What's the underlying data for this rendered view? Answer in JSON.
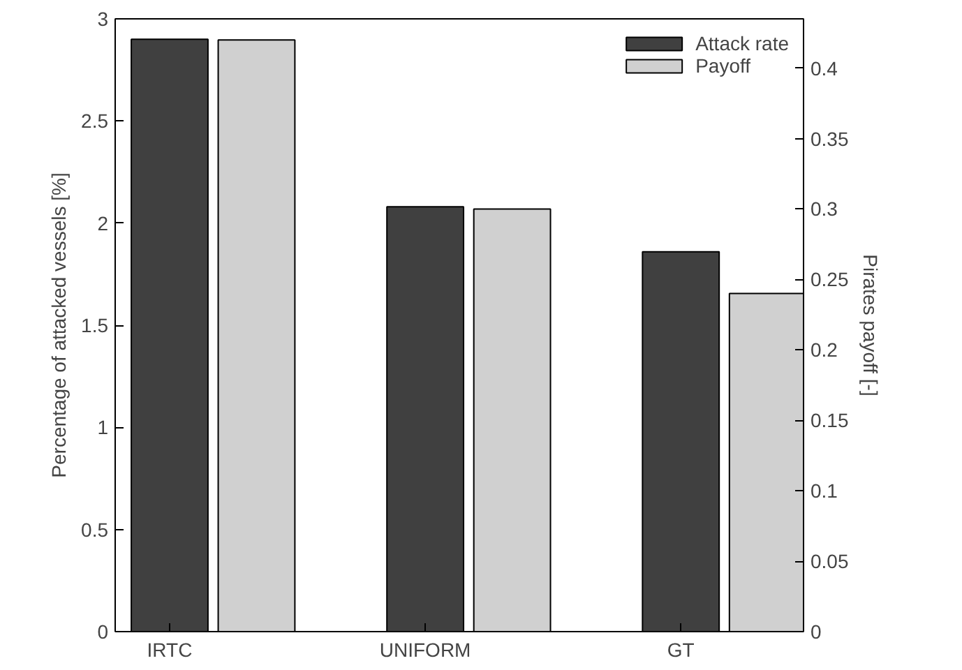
{
  "chart_data": {
    "type": "bar",
    "categories": [
      "IRTC",
      "UNIFORM",
      "GT"
    ],
    "series": [
      {
        "name": "Attack rate",
        "color": "#404040",
        "values": [
          2.9,
          2.08,
          1.86
        ]
      },
      {
        "name": "Payoff",
        "color": "#d0d0d0",
        "values": [
          0.42,
          0.3,
          0.24
        ],
        "axis": "y2"
      }
    ],
    "ylabel": "Percentage of attacked vessels [%]",
    "y2label": "Pirates payoff [-]",
    "ylim": [
      0,
      3
    ],
    "yticks": [
      0,
      0.5,
      1,
      1.5,
      2,
      2.5,
      3
    ],
    "y2lim": [
      0,
      0.435
    ],
    "y2ticks": [
      0,
      0.05,
      0.1,
      0.15,
      0.2,
      0.25,
      0.3,
      0.35,
      0.4
    ],
    "legend": "top right",
    "grid": false
  }
}
